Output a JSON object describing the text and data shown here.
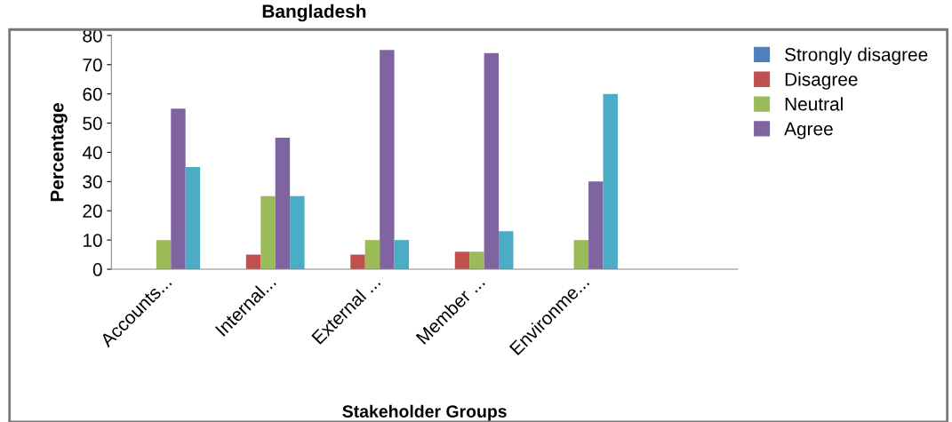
{
  "chart_data": {
    "type": "bar",
    "title": "Bangladesh",
    "xlabel": "Stakeholder Groups",
    "ylabel": "Percentage",
    "categories": [
      "Accounts...",
      "Internal...",
      "External ...",
      "Member ...",
      "Environme...",
      null
    ],
    "series": [
      {
        "name": "Strongly disagree",
        "color": "#4f81bd",
        "values": [
          0,
          0,
          0,
          0,
          0,
          null
        ]
      },
      {
        "name": "Disagree",
        "color": "#c0504d",
        "values": [
          0,
          5,
          5,
          6,
          0,
          null
        ]
      },
      {
        "name": "Neutral",
        "color": "#9bbb59",
        "values": [
          10,
          25,
          10,
          6,
          10,
          null
        ]
      },
      {
        "name": "Agree",
        "color": "#8064a2",
        "values": [
          55,
          45,
          75,
          74,
          30,
          null
        ]
      },
      {
        "color": "#4bacc6",
        "values": [
          35,
          25,
          10,
          13,
          60,
          null
        ]
      }
    ],
    "ylim": [
      0,
      80
    ],
    "yticks": [
      0,
      10,
      20,
      30,
      40,
      50,
      60,
      70,
      80
    ],
    "grid": false,
    "legend": "top right"
  }
}
